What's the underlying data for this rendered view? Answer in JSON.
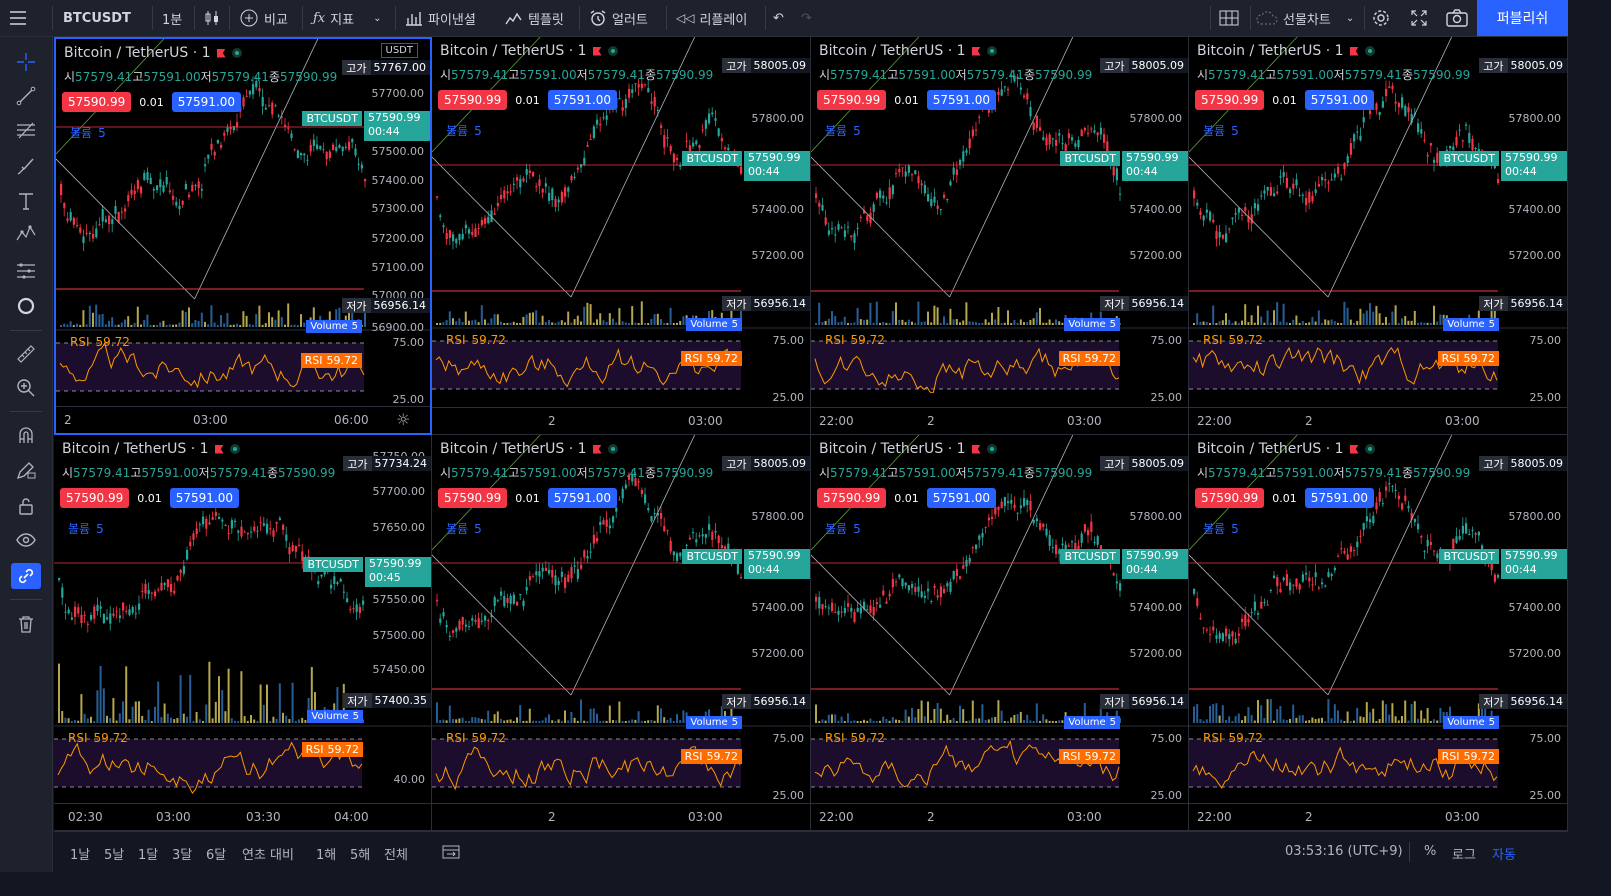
{
  "toolbar": {
    "symbol": "BTCUSDT",
    "interval": "1분",
    "compare": "비교",
    "indicators": "지표",
    "financials": "파이낸셜",
    "templates": "템플릿",
    "alert": "얼러트",
    "replay": "리플레이",
    "futures": "선물차트",
    "publish": "퍼블리쉬"
  },
  "colors": {
    "accent": "#2962ff",
    "up": "#26a69a",
    "down": "#f23645",
    "rsi": "#ff9800"
  },
  "sidebar": [
    "crosshair-icon",
    "trend-line-icon",
    "fib-icon",
    "brush-icon",
    "text-icon",
    "pattern-icon",
    "forecast-icon",
    "circle-icon",
    "ruler-icon",
    "zoom-icon",
    "magnet-icon",
    "lock-draw-icon",
    "unlock-icon",
    "eye-icon",
    "link-icon",
    "trash-icon"
  ],
  "common": {
    "title": "Bitcoin / TetherUS · 1",
    "ohlc": {
      "o_label": "시",
      "o": "57579.41",
      "h_label": "고",
      "h": "57591.00",
      "l_label": "저",
      "l": "57579.41",
      "c_label": "종",
      "c": "57590.99"
    },
    "sell": "57590.99",
    "spread": "0.01",
    "buy": "57591.00",
    "volume_label": "볼륨",
    "volume_value": "5",
    "symtag": "BTCUSDT",
    "price": "57590.99",
    "high_label": "고가",
    "low_label": "저가",
    "volume_tag": "Volume",
    "rsi_label": "RSI",
    "rsi_value": "59.72",
    "rsi_ticks": [
      "75.00",
      "25.00"
    ]
  },
  "panes": [
    {
      "high": "57767.00",
      "low": "56956.14",
      "countdown": "00:44",
      "ticks": [
        "57700.00",
        "57600.00",
        "57500.00",
        "57400.00",
        "57300.00",
        "57200.00",
        "57100.00",
        "57000.00",
        "56900.00"
      ],
      "xlabels": [
        "2",
        "03:00",
        "06:00"
      ],
      "unit": "USDT"
    },
    {
      "high": "58005.09",
      "low": "56956.14",
      "countdown": "00:44",
      "ticks": [
        "57800.00",
        "57600.00",
        "57400.00",
        "57200.00",
        "57000.00"
      ],
      "xlabels": [
        "2",
        "03:00"
      ]
    },
    {
      "high": "58005.09",
      "low": "56956.14",
      "countdown": "00:44",
      "ticks": [
        "57800.00",
        "57600.00",
        "57400.00",
        "57200.00",
        "57000.00"
      ],
      "xlabels": [
        "22:00",
        "2",
        "03:00"
      ]
    },
    {
      "high": "58005.09",
      "low": "56956.14",
      "countdown": "00:44",
      "ticks": [
        "57800.00",
        "57600.00",
        "57400.00",
        "57200.00",
        "57000.00"
      ],
      "xlabels": [
        "22:00",
        "2",
        "03:00"
      ]
    },
    {
      "high": "57734.24",
      "low": "57400.35",
      "countdown": "00:45",
      "ticks": [
        "57750.00",
        "57700.00",
        "57650.00",
        "57600.00",
        "57550.00",
        "57500.00",
        "57450.00"
      ],
      "xlabels": [
        "02:30",
        "03:00",
        "03:30",
        "04:00"
      ],
      "rsi_ticks": [
        "40.00"
      ]
    },
    {
      "high": "58005.09",
      "low": "56956.14",
      "countdown": "00:44",
      "ticks": [
        "57800.00",
        "57600.00",
        "57400.00",
        "57200.00",
        "57000.00"
      ],
      "xlabels": [
        "2",
        "03:00"
      ]
    },
    {
      "high": "58005.09",
      "low": "56956.14",
      "countdown": "00:44",
      "ticks": [
        "57800.00",
        "57600.00",
        "57400.00",
        "57200.00",
        "57000.00"
      ],
      "xlabels": [
        "22:00",
        "2",
        "03:00"
      ]
    },
    {
      "high": "58005.09",
      "low": "56956.14",
      "countdown": "00:44",
      "ticks": [
        "57800.00",
        "57600.00",
        "57400.00",
        "57200.00",
        "57000.00"
      ],
      "xlabels": [
        "22:00",
        "2",
        "03:00"
      ]
    }
  ],
  "bottom": {
    "ranges": [
      "1날",
      "5날",
      "1달",
      "3달",
      "6달",
      "연초 대비",
      "1해",
      "5해",
      "전체"
    ],
    "time": "03:53:16 (UTC+9)",
    "percent": "%",
    "log": "로그",
    "auto": "자동"
  }
}
